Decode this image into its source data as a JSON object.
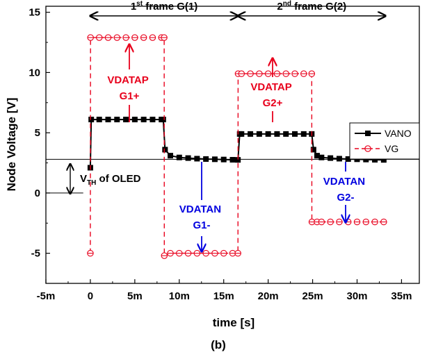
{
  "chart_data": {
    "type": "line",
    "xlabel": "time [s]",
    "ylabel": "Node Voltage [V]",
    "caption": "(b)",
    "xlim": [
      -5,
      37
    ],
    "ylim": [
      -7.5,
      15.5
    ],
    "x_unit_suffix": "m",
    "xticks": [
      -5,
      0,
      5,
      10,
      15,
      20,
      25,
      30,
      35
    ],
    "xtick_labels": [
      "-5m",
      "0",
      "5m",
      "10m",
      "15m",
      "20m",
      "25m",
      "30m",
      "35m"
    ],
    "yticks": [
      -5,
      0,
      5,
      10,
      15
    ],
    "ytick_labels": [
      "-5",
      "0",
      "5",
      "10",
      "15"
    ],
    "series": [
      {
        "name": "VANO",
        "color": "#000000",
        "line": "solid",
        "marker": "filled-square",
        "x": [
          0,
          0.1,
          1,
          2,
          3,
          4,
          5,
          6,
          7,
          8,
          8.2,
          8.4,
          9,
          10,
          11,
          12,
          13,
          14,
          15,
          16,
          16.6,
          16.8,
          17,
          18,
          19,
          20,
          21,
          22,
          23,
          24,
          24.9,
          25.1,
          25.5,
          26,
          27,
          28,
          29,
          30,
          31,
          32,
          33
        ],
        "y": [
          2.1,
          6.1,
          6.1,
          6.1,
          6.1,
          6.1,
          6.1,
          6.1,
          6.1,
          6.1,
          6.1,
          3.6,
          3.1,
          2.95,
          2.9,
          2.85,
          2.82,
          2.8,
          2.78,
          2.76,
          2.75,
          4.9,
          4.9,
          4.9,
          4.9,
          4.9,
          4.9,
          4.9,
          4.9,
          4.9,
          4.9,
          3.6,
          3.1,
          2.95,
          2.9,
          2.85,
          2.82,
          2.8,
          2.78,
          2.76,
          2.75
        ]
      },
      {
        "name": "VG",
        "color": "#e8001c",
        "line": "dashed",
        "marker": "open-circle",
        "x": [
          0,
          0.02,
          1,
          2,
          3,
          4,
          5,
          6,
          7,
          8,
          8.3,
          8.32,
          9,
          10,
          11,
          12,
          13,
          14,
          15,
          16,
          16.6,
          16.62,
          17,
          18,
          19,
          20,
          21,
          22,
          23,
          24,
          24.9,
          24.92,
          25.5,
          26,
          27,
          28,
          29,
          30,
          31,
          32,
          33
        ],
        "y": [
          -5,
          12.9,
          12.9,
          12.9,
          12.9,
          12.9,
          12.9,
          12.9,
          12.9,
          12.9,
          12.9,
          -5.2,
          -5,
          -5,
          -5,
          -5,
          -5,
          -5,
          -5,
          -5,
          -5,
          9.9,
          9.9,
          9.9,
          9.9,
          9.9,
          9.9,
          9.9,
          9.9,
          9.9,
          9.9,
          -2.4,
          -2.4,
          -2.4,
          -2.4,
          -2.4,
          -2.4,
          -2.4,
          -2.4,
          -2.4,
          -2.4
        ]
      }
    ],
    "reference_lines": [
      {
        "axis": "y",
        "value": 2.8,
        "label": "V_TH of OLED"
      }
    ],
    "annotations": {
      "frame1": {
        "base": "1",
        "sup": "st",
        "rest": " frame G(1)",
        "x_from": 0,
        "x_to": 16.6,
        "y": 14.7
      },
      "frame2": {
        "base": "2",
        "sup": "nd",
        "rest": " frame G(2)",
        "x_from": 16.6,
        "x_to": 33.2,
        "y": 14.7
      },
      "vth": {
        "main": "V",
        "sub": "TH",
        "rest": " of OLED"
      },
      "labels": [
        {
          "id": "vdatap-g1",
          "lines": [
            "VDATAP",
            "G1+"
          ],
          "color": "#e8001c"
        },
        {
          "id": "vdatan-g1",
          "lines": [
            "VDATAN",
            "G1-"
          ],
          "color": "#0000e0"
        },
        {
          "id": "vdatap-g2",
          "lines": [
            "VDATAP",
            "G2+"
          ],
          "color": "#e8001c"
        },
        {
          "id": "vdatan-g2",
          "lines": [
            "VDATAN",
            "G2-"
          ],
          "color": "#0000e0"
        }
      ]
    },
    "legend_position": "right"
  }
}
